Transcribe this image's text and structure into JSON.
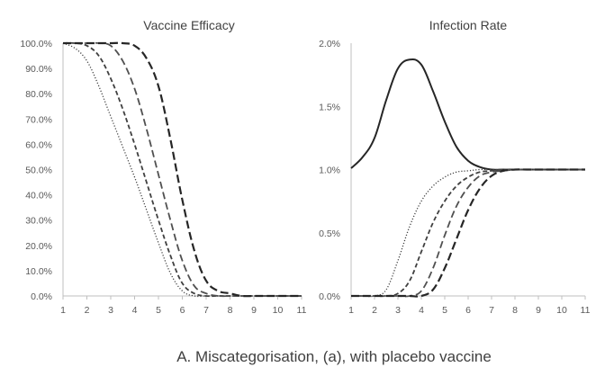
{
  "caption": "A. Miscategorisation, (a), with placebo vaccine",
  "chart_data": [
    {
      "type": "line",
      "title": "Vaccine Efficacy",
      "xlabel": "",
      "ylabel": "",
      "x": [
        1,
        1.5,
        2,
        2.5,
        3,
        3.5,
        4,
        4.5,
        5,
        5.5,
        6,
        6.5,
        7,
        7.5,
        8,
        8.5,
        9,
        9.5,
        10,
        10.5,
        11
      ],
      "xlim": [
        1,
        11
      ],
      "ylim": [
        0,
        100
      ],
      "x_ticks": [
        "1",
        "2",
        "3",
        "4",
        "5",
        "6",
        "7",
        "8",
        "9",
        "10",
        "11"
      ],
      "y_ticks": [
        "0.0%",
        "10.0%",
        "20.0%",
        "30.0%",
        "40.0%",
        "50.0%",
        "60.0%",
        "70.0%",
        "80.0%",
        "90.0%",
        "100.0%"
      ],
      "grid": false,
      "series": [
        {
          "name": "dotted",
          "style": "dotted",
          "color": "#404040",
          "values": [
            100,
            98,
            93,
            83,
            71,
            59,
            47,
            34,
            21,
            9,
            2,
            0,
            0,
            0,
            0,
            0,
            0,
            0,
            0,
            0,
            0
          ]
        },
        {
          "name": "short dash",
          "style": "short-dash",
          "color": "#404040",
          "values": [
            100,
            100,
            99,
            95,
            86,
            74,
            60,
            45,
            30,
            16,
            5,
            1,
            0,
            0,
            0,
            0,
            0,
            0,
            0,
            0,
            0
          ]
        },
        {
          "name": "long dash (light)",
          "style": "long-dash",
          "color": "#505050",
          "values": [
            100,
            100,
            100,
            100,
            99,
            93,
            82,
            66,
            48,
            30,
            14,
            4,
            1,
            0,
            0,
            0,
            0,
            0,
            0,
            0,
            0
          ]
        },
        {
          "name": "long dash (heavy)",
          "style": "long-dash-heavy",
          "color": "#262626",
          "values": [
            100,
            100,
            100,
            100,
            100,
            100,
            99,
            94,
            83,
            62,
            38,
            18,
            6,
            2,
            1,
            0,
            0,
            0,
            0,
            0,
            0
          ]
        }
      ]
    },
    {
      "type": "line",
      "title": "Infection Rate",
      "xlabel": "",
      "ylabel": "",
      "x": [
        1,
        1.5,
        2,
        2.5,
        3,
        3.5,
        4,
        4.5,
        5,
        5.5,
        6,
        6.5,
        7,
        7.5,
        8,
        8.5,
        9,
        9.5,
        10,
        10.5,
        11
      ],
      "xlim": [
        1,
        11
      ],
      "ylim": [
        0,
        2.0
      ],
      "x_ticks": [
        "1",
        "2",
        "3",
        "4",
        "5",
        "6",
        "7",
        "8",
        "9",
        "10",
        "11"
      ],
      "y_ticks": [
        "0.0%",
        "0.5%",
        "1.0%",
        "1.5%",
        "2.0%"
      ],
      "grid": false,
      "series": [
        {
          "name": "solid",
          "style": "solid",
          "color": "#262626",
          "values": [
            1.01,
            1.1,
            1.25,
            1.55,
            1.8,
            1.87,
            1.83,
            1.62,
            1.38,
            1.18,
            1.07,
            1.02,
            1.0,
            1.0,
            1.0,
            1.0,
            1.0,
            1.0,
            1.0,
            1.0,
            1.0
          ]
        },
        {
          "name": "dotted",
          "style": "dotted",
          "color": "#404040",
          "values": [
            0,
            0,
            0,
            0.05,
            0.28,
            0.55,
            0.75,
            0.87,
            0.94,
            0.98,
            0.99,
            1.0,
            1.0,
            1.0,
            1.0,
            1.0,
            1.0,
            1.0,
            1.0,
            1.0,
            1.0
          ]
        },
        {
          "name": "short dash",
          "style": "short-dash",
          "color": "#404040",
          "values": [
            0,
            0,
            0,
            0,
            0.02,
            0.12,
            0.35,
            0.58,
            0.75,
            0.87,
            0.94,
            0.98,
            0.99,
            1.0,
            1.0,
            1.0,
            1.0,
            1.0,
            1.0,
            1.0,
            1.0
          ]
        },
        {
          "name": "long dash (light)",
          "style": "long-dash",
          "color": "#505050",
          "values": [
            0,
            0,
            0,
            0,
            0,
            0,
            0.04,
            0.22,
            0.48,
            0.71,
            0.86,
            0.95,
            0.98,
            0.99,
            1.0,
            1.0,
            1.0,
            1.0,
            1.0,
            1.0,
            1.0
          ]
        },
        {
          "name": "long dash (heavy)",
          "style": "long-dash-heavy",
          "color": "#262626",
          "values": [
            0,
            0,
            0,
            0,
            0,
            0,
            0,
            0.05,
            0.22,
            0.45,
            0.68,
            0.85,
            0.95,
            0.99,
            1.0,
            1.0,
            1.0,
            1.0,
            1.0,
            1.0,
            1.0
          ]
        }
      ]
    }
  ]
}
